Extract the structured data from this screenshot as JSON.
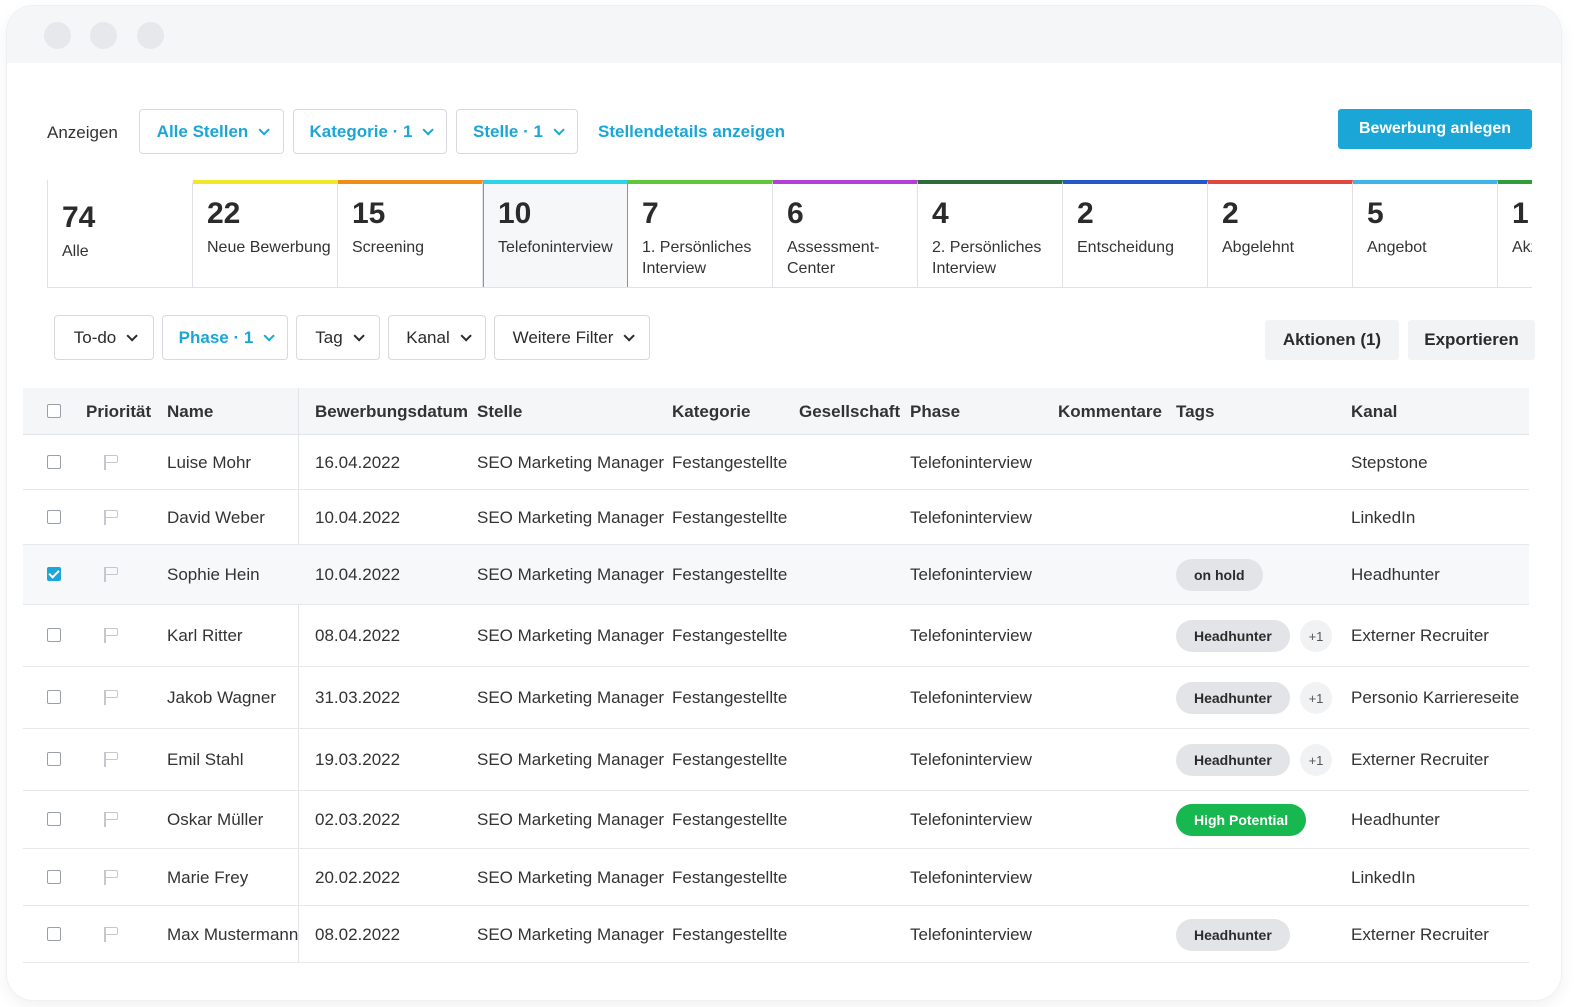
{
  "toolbar": {
    "show_label": "Anzeigen",
    "all_jobs": "Alle Stellen",
    "category": "Kategorie · 1",
    "job": "Stelle · 1",
    "details_link": "Stellendetails anzeigen",
    "create_button": "Bewerbung anlegen"
  },
  "stages": [
    {
      "count": "74",
      "label": "Alle",
      "color": ""
    },
    {
      "count": "22",
      "label": "Neue Bewerbung",
      "color": "#f2e82b"
    },
    {
      "count": "15",
      "label": "Screening",
      "color": "#f08c1a"
    },
    {
      "count": "10",
      "label": "Telefoninterview",
      "color": "#2bd4e8"
    },
    {
      "count": "7",
      "label": "1. Persönliches Interview",
      "color": "#5ec83a"
    },
    {
      "count": "6",
      "label": "Assessment-Center",
      "color": "#b33fd6"
    },
    {
      "count": "4",
      "label": "2. Persönliches Interview",
      "color": "#2e6b3a"
    },
    {
      "count": "2",
      "label": "Entscheidung",
      "color": "#2358c9"
    },
    {
      "count": "2",
      "label": "Abgelehnt",
      "color": "#e0473f"
    },
    {
      "count": "5",
      "label": "Angebot",
      "color": "#3fb4e8"
    },
    {
      "count": "1",
      "label": "Akz",
      "color": "#2e9e3a"
    }
  ],
  "active_stage": "Telefoninterview",
  "filters": {
    "todo": "To-do",
    "phase": "Phase · 1",
    "tag": "Tag",
    "channel": "Kanal",
    "more": "Weitere Filter",
    "actions": "Aktionen (1)",
    "export": "Exportieren"
  },
  "table": {
    "headers": {
      "priority": "Priorität",
      "name": "Name",
      "date": "Bewerbungsdatum",
      "job": "Stelle",
      "category": "Kategorie",
      "company": "Gesellschaft",
      "phase": "Phase",
      "comments": "Kommentare",
      "tags": "Tags",
      "channel": "Kanal"
    },
    "rows": [
      {
        "name": "Luise Mohr",
        "date": "16.04.2022",
        "job": "SEO Marketing Manager",
        "category": "Festangestellte",
        "phase": "Telefoninterview",
        "tag": "",
        "extra": "",
        "channel": "Stepstone",
        "checked": false
      },
      {
        "name": "David Weber",
        "date": "10.04.2022",
        "job": "SEO Marketing Manager",
        "category": "Festangestellte",
        "phase": "Telefoninterview",
        "tag": "",
        "extra": "",
        "channel": "LinkedIn",
        "checked": false
      },
      {
        "name": "Sophie Hein",
        "date": "10.04.2022",
        "job": "SEO Marketing Manager",
        "category": "Festangestellte",
        "phase": "Telefoninterview",
        "tag": "on hold",
        "extra": "",
        "channel": "Headhunter",
        "checked": true
      },
      {
        "name": "Karl Ritter",
        "date": "08.04.2022",
        "job": "SEO Marketing Manager",
        "category": "Festangestellte",
        "phase": "Telefoninterview",
        "tag": "Headhunter",
        "extra": "+1",
        "channel": "Externer Recruiter",
        "checked": false
      },
      {
        "name": "Jakob Wagner",
        "date": "31.03.2022",
        "job": "SEO Marketing Manager",
        "category": "Festangestellte",
        "phase": "Telefoninterview",
        "tag": "Headhunter",
        "extra": "+1",
        "channel": "Personio Karriereseite",
        "checked": false
      },
      {
        "name": "Emil Stahl",
        "date": "19.03.2022",
        "job": "SEO Marketing Manager",
        "category": "Festangestellte",
        "phase": "Telefoninterview",
        "tag": "Headhunter",
        "extra": "+1",
        "channel": "Externer Recruiter",
        "checked": false
      },
      {
        "name": "Oskar Müller",
        "date": "02.03.2022",
        "job": "SEO Marketing Manager",
        "category": "Festangestellte",
        "phase": "Telefoninterview",
        "tag": "High Potential",
        "extra": "",
        "channel": "Headhunter",
        "checked": false
      },
      {
        "name": "Marie Frey",
        "date": "20.02.2022",
        "job": "SEO Marketing Manager",
        "category": "Festangestellte",
        "phase": "Telefoninterview",
        "tag": "",
        "extra": "",
        "channel": "LinkedIn",
        "checked": false
      },
      {
        "name": "Max Mustermann",
        "date": "08.02.2022",
        "job": "SEO Marketing Manager",
        "category": "Festangestellte",
        "phase": "Telefoninterview",
        "tag": "Headhunter",
        "extra": "",
        "channel": "Externer Recruiter",
        "checked": false
      }
    ]
  },
  "colors": {
    "accent": "#1ba6d8",
    "tag_green": "#16b84f",
    "tag_grey": "#e2e4e7"
  }
}
